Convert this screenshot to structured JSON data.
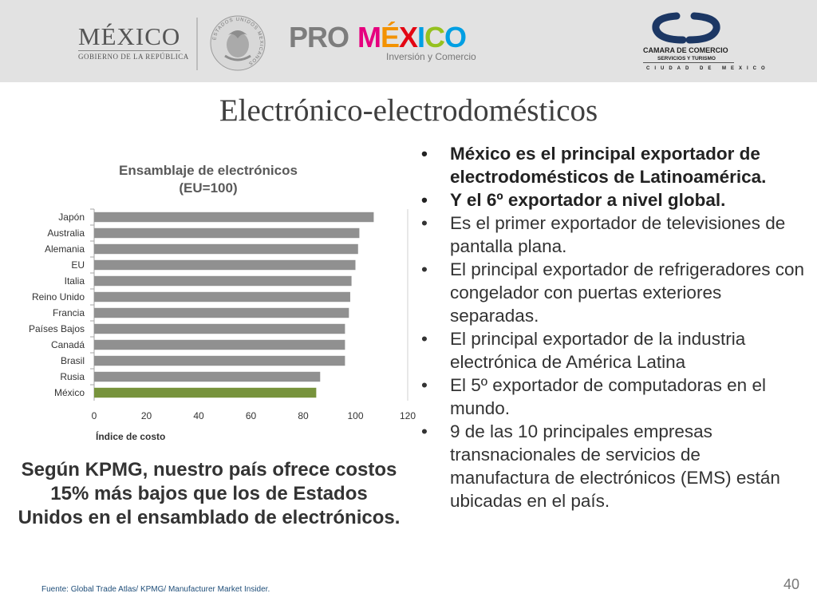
{
  "header": {
    "mexico_logo": {
      "word": "MÉXICO",
      "subtitle": "GOBIERNO DE LA REPÚBLICA"
    },
    "seal_text": "ESTADOS UNIDOS MEXICANOS",
    "promexico_logo": {
      "pro": "PRO",
      "mexico": "MÉXICO",
      "tagline": "Inversión y Comercio"
    },
    "camara_logo": {
      "line1": "CAMARA DE COMERCIO",
      "line2": "SERVICIOS Y TURISMO",
      "line3": "CIUDAD DE MEXICO"
    },
    "colors": {
      "header_bg": "#e2e2e2",
      "camara_blue": "#1c3764"
    }
  },
  "slide": {
    "title": "Electrónico-electrodomésticos",
    "bullets": [
      {
        "text": "México es el principal exportador de electrodomésticos de Latinoamérica.",
        "bold": true
      },
      {
        "text": "Y el 6º exportador a nivel global.",
        "bold": true
      },
      {
        "text": "Es el primer exportador de televisiones de pantalla plana.",
        "bold": false
      },
      {
        "text": "El principal exportador de refrigeradores con congelador con puertas exteriores separadas.",
        "bold": false
      },
      {
        "text": "El principal exportador de la industria electrónica de América Latina",
        "bold": false
      },
      {
        "text": "El 5º exportador de computadoras en el mundo.",
        "bold": false
      },
      {
        "text": "9 de las 10 principales empresas transnacionales de servicios de manufactura de electrónicos (EMS) están ubicadas en el país.",
        "bold": false
      }
    ],
    "bullet_symbol": "•",
    "kpmg_note": "Según KPMG, nuestro país ofrece costos 15% más bajos que los de Estados Unidos en el ensamblado de electrónicos.",
    "source": "Fuente: Global Trade Atlas/ KPMG/ Manufacturer Market Insider.",
    "page_number": "40"
  },
  "chart_data": {
    "type": "bar",
    "orientation": "horizontal",
    "title_lines": [
      "Ensamblaje de electrónicos",
      "(EU=100)"
    ],
    "categories": [
      "Japón",
      "Australia",
      "Alemania",
      "EU",
      "Italia",
      "Reino Unido",
      "Francia",
      "Países Bajos",
      "Canadá",
      "Brasil",
      "Rusia",
      "México"
    ],
    "values": [
      107,
      101.5,
      101,
      100,
      98.5,
      98,
      97.5,
      96,
      96,
      96,
      86.5,
      85
    ],
    "xlabel": "Índice de costo",
    "ylabel": "",
    "xlim": [
      0,
      120
    ],
    "xticks": [
      0,
      20,
      40,
      60,
      80,
      100,
      120
    ],
    "grid": false,
    "legend": "none",
    "colors": {
      "default_bar": "#909090",
      "highlight_bar": "#77933c",
      "highlight_category": "México"
    }
  }
}
